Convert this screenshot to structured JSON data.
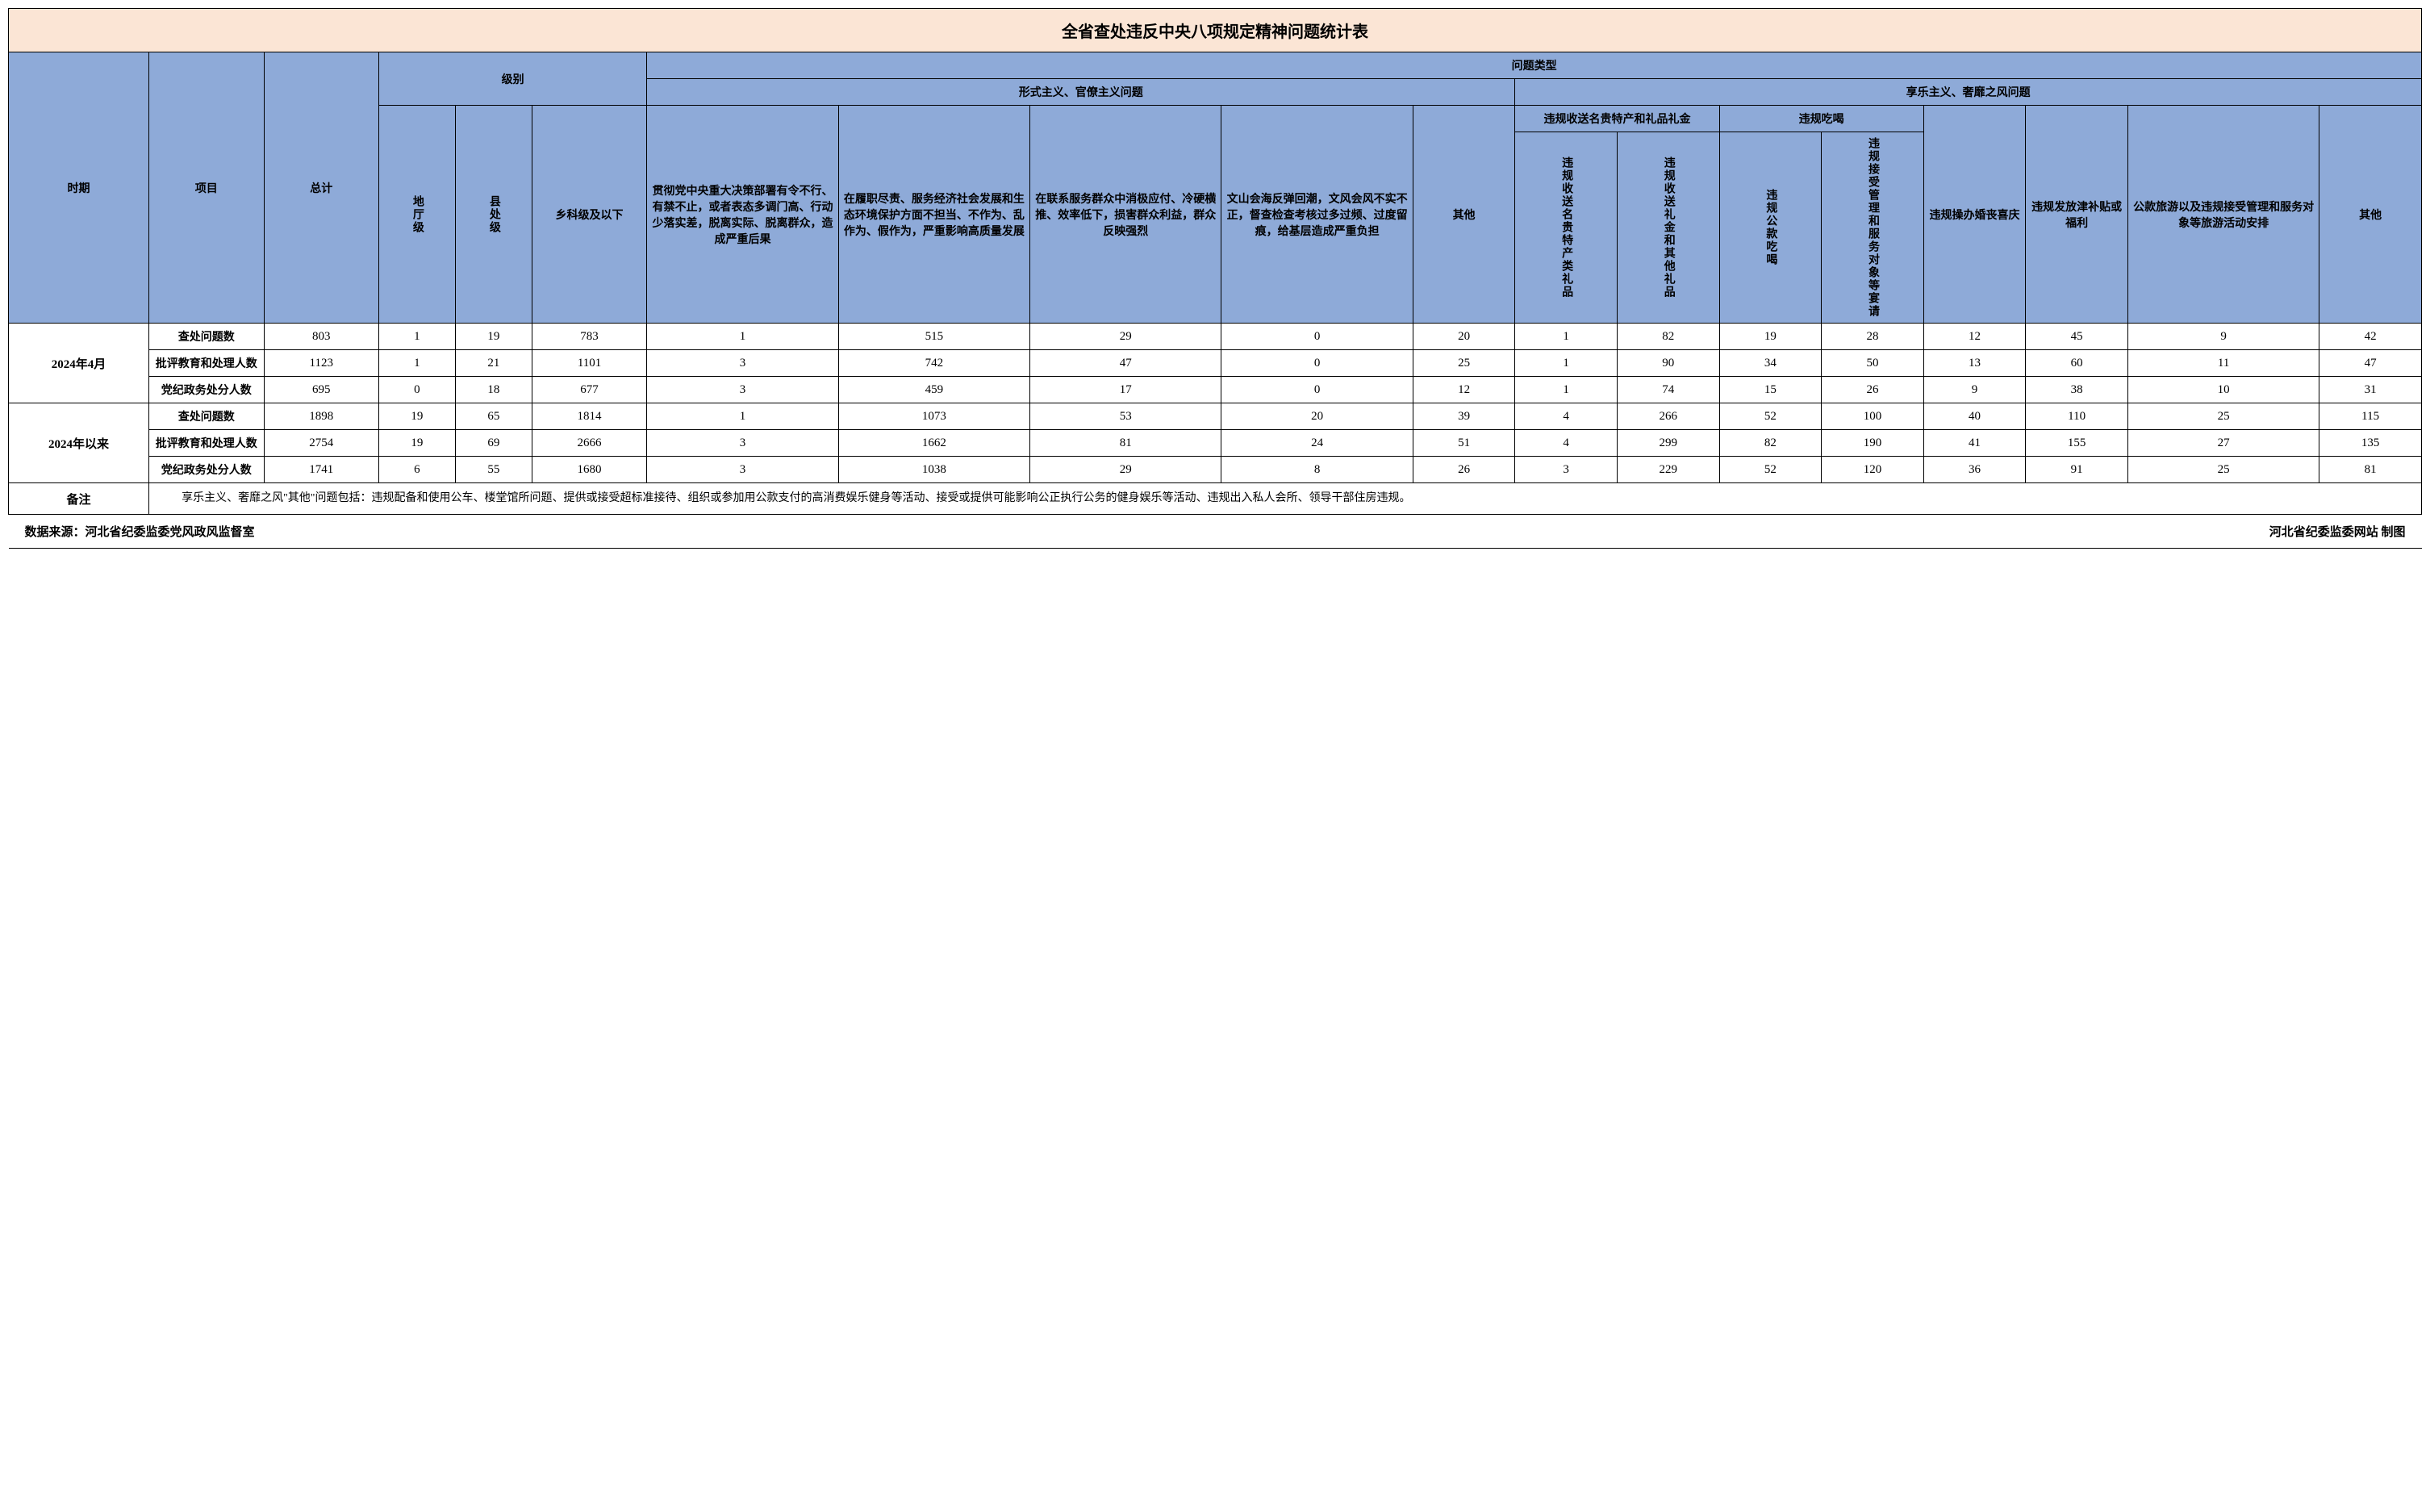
{
  "title": "全省查处违反中央八项规定精神问题统计表",
  "colors": {
    "title_bg": "#fbe5d5",
    "header_bg": "#8eaad8",
    "border": "#000000",
    "data_bg": "#ffffff"
  },
  "headers": {
    "period": "时期",
    "item": "项目",
    "total": "总计",
    "level": "级别",
    "level_di": "地厅级",
    "level_xian": "县处级",
    "level_xiang": "乡科级及以下",
    "problem_type": "问题类型",
    "formalism": "形式主义、官僚主义问题",
    "hedonism": "享乐主义、奢靡之风问题",
    "col_a": "贯彻党中央重大决策部署有令不行、有禁不止，或者表态多调门高、行动少落实差，脱离实际、脱离群众，造成严重后果",
    "col_b": "在履职尽责、服务经济社会发展和生态环境保护方面不担当、不作为、乱作为、假作为，严重影响高质量发展",
    "col_c": "在联系服务群众中消极应付、冷硬横推、效率低下，损害群众利益，群众反映强烈",
    "col_d": "文山会海反弹回潮，文风会风不实不正，督查检查考核过多过频、过度留痕，给基层造成严重负担",
    "col_e": "其他",
    "col_f_group": "违规收送名贵特产和礼品礼金",
    "col_f1": "违规收送名贵特产类礼品",
    "col_f2": "违规收送礼金和其他礼品",
    "col_g_group": "违规吃喝",
    "col_g1": "违规公款吃喝",
    "col_g2": "违规接受管理和服务对象等宴请",
    "col_h": "违规操办婚丧喜庆",
    "col_i": "违规发放津补贴或福利",
    "col_j": "公款旅游以及违规接受管理和服务对象等旅游活动安排",
    "col_k": "其他"
  },
  "periods": [
    {
      "label": "2024年4月",
      "rows": [
        {
          "item": "查处问题数",
          "total": "803",
          "levels": [
            "1",
            "19",
            "783"
          ],
          "values": [
            "1",
            "515",
            "29",
            "0",
            "20",
            "1",
            "82",
            "19",
            "28",
            "12",
            "45",
            "9",
            "42"
          ]
        },
        {
          "item": "批评教育和处理人数",
          "total": "1123",
          "levels": [
            "1",
            "21",
            "1101"
          ],
          "values": [
            "3",
            "742",
            "47",
            "0",
            "25",
            "1",
            "90",
            "34",
            "50",
            "13",
            "60",
            "11",
            "47"
          ]
        },
        {
          "item": "党纪政务处分人数",
          "total": "695",
          "levels": [
            "0",
            "18",
            "677"
          ],
          "values": [
            "3",
            "459",
            "17",
            "0",
            "12",
            "1",
            "74",
            "15",
            "26",
            "9",
            "38",
            "10",
            "31"
          ]
        }
      ]
    },
    {
      "label": "2024年以来",
      "rows": [
        {
          "item": "查处问题数",
          "total": "1898",
          "levels": [
            "19",
            "65",
            "1814"
          ],
          "values": [
            "1",
            "1073",
            "53",
            "20",
            "39",
            "4",
            "266",
            "52",
            "100",
            "40",
            "110",
            "25",
            "115"
          ]
        },
        {
          "item": "批评教育和处理人数",
          "total": "2754",
          "levels": [
            "19",
            "69",
            "2666"
          ],
          "values": [
            "3",
            "1662",
            "81",
            "24",
            "51",
            "4",
            "299",
            "82",
            "190",
            "41",
            "155",
            "27",
            "135"
          ]
        },
        {
          "item": "党纪政务处分人数",
          "total": "1741",
          "levels": [
            "6",
            "55",
            "1680"
          ],
          "values": [
            "3",
            "1038",
            "29",
            "8",
            "26",
            "3",
            "229",
            "52",
            "120",
            "36",
            "91",
            "25",
            "81"
          ]
        }
      ]
    }
  ],
  "note_label": "备注",
  "note_text": "　　享乐主义、奢靡之风\"其他\"问题包括：违规配备和使用公车、楼堂馆所问题、提供或接受超标准接待、组织或参加用公款支付的高消费娱乐健身等活动、接受或提供可能影响公正执行公务的健身娱乐等活动、违规出入私人会所、领导干部住房违规。",
  "footer_left": "数据来源：河北省纪委监委党风政风监督室",
  "footer_right": "河北省纪委监委网站 制图"
}
